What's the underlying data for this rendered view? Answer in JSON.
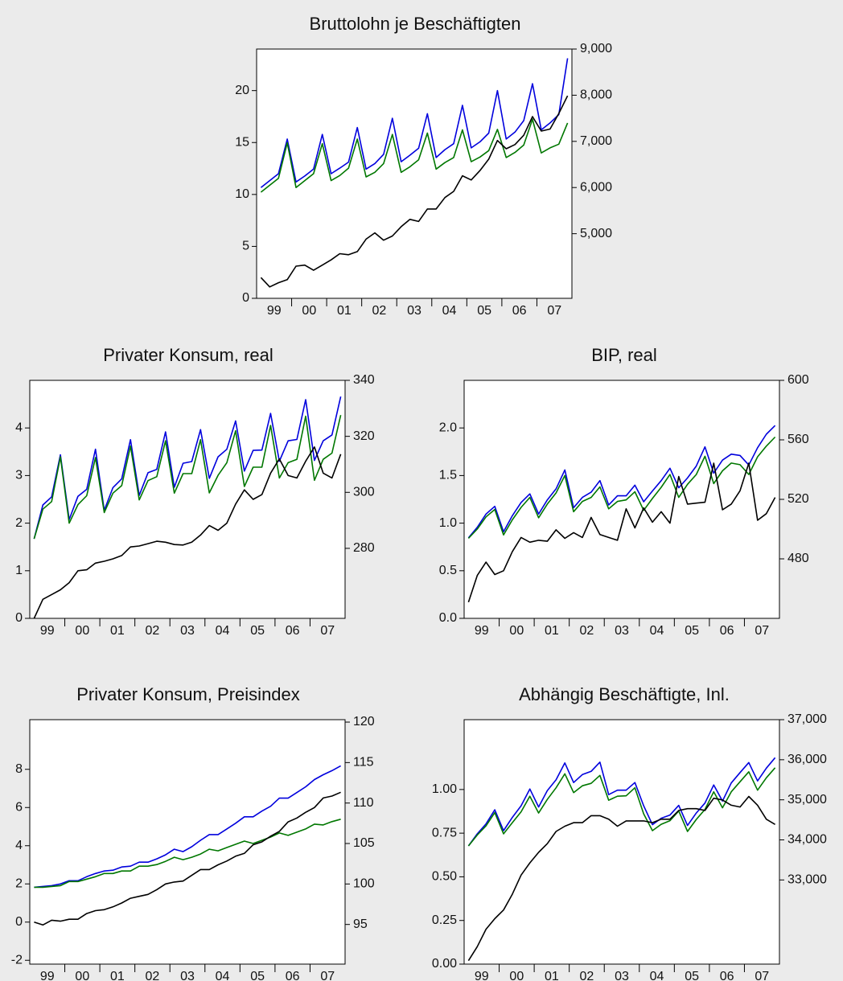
{
  "chart_data": [
    {
      "type": "line",
      "title": "Bruttolohn je Beschäftigten",
      "x_tick_labels": [
        "99",
        "00",
        "01",
        "02",
        "03",
        "04",
        "05",
        "06",
        "07"
      ],
      "left_axis": {
        "range": [
          0,
          24
        ],
        "ticks": [
          0,
          5,
          10,
          15,
          20
        ]
      },
      "right_axis": {
        "range": [
          3600,
          9000
        ],
        "ticks": [
          5000,
          6000,
          7000,
          8000,
          9000
        ],
        "tick_labels": [
          "5,000",
          "6,000",
          "7,000",
          "8,000",
          "9,000"
        ]
      },
      "grid": false,
      "series": [
        {
          "axis": "right",
          "color": "#0000dd",
          "values": [
            6000,
            6150,
            6300,
            7050,
            6120,
            6250,
            6400,
            7150,
            6300,
            6420,
            6550,
            7300,
            6400,
            6520,
            6720,
            7500,
            6560,
            6700,
            6850,
            7600,
            6650,
            6820,
            6950,
            7780,
            6860,
            6990,
            7180,
            8100,
            7050,
            7200,
            7450,
            8250,
            7250,
            7400,
            7580,
            8800
          ]
        },
        {
          "axis": "right",
          "color": "#007700",
          "values": [
            5900,
            6050,
            6200,
            6970,
            6000,
            6150,
            6300,
            6950,
            6150,
            6260,
            6420,
            7050,
            6230,
            6330,
            6520,
            7150,
            6330,
            6450,
            6600,
            7180,
            6400,
            6540,
            6650,
            7250,
            6560,
            6660,
            6800,
            7260,
            6650,
            6760,
            6920,
            7480,
            6750,
            6860,
            6940,
            7400
          ]
        },
        {
          "axis": "left",
          "color": "#000000",
          "values": [
            2.0,
            1.1,
            1.5,
            1.8,
            3.1,
            3.2,
            2.7,
            3.2,
            3.7,
            4.3,
            4.2,
            4.5,
            5.7,
            6.3,
            5.6,
            6.0,
            6.9,
            7.6,
            7.4,
            8.6,
            8.6,
            9.7,
            10.3,
            11.8,
            11.4,
            12.3,
            13.4,
            15.2,
            14.4,
            14.8,
            15.7,
            17.5,
            16.1,
            16.3,
            17.8,
            19.5
          ]
        }
      ]
    },
    {
      "type": "line",
      "title": "Privater Konsum, real",
      "x_tick_labels": [
        "99",
        "00",
        "01",
        "02",
        "03",
        "04",
        "05",
        "06",
        "07"
      ],
      "left_axis": {
        "range": [
          0,
          5
        ],
        "ticks": [
          0,
          1,
          2,
          3,
          4
        ]
      },
      "right_axis": {
        "range": [
          255,
          340
        ],
        "ticks": [
          280,
          300,
          320,
          340
        ]
      },
      "grid": false,
      "series": [
        {
          "axis": "right",
          "color": "#0000dd",
          "values": [
            283.4,
            295.5,
            298.4,
            313.4,
            290.3,
            298.6,
            301.1,
            315.4,
            293.6,
            301.7,
            304.8,
            318.8,
            298.9,
            307.0,
            308.2,
            321.6,
            301.8,
            310.4,
            311.0,
            322.4,
            305.0,
            312.7,
            315.4,
            325.5,
            307.6,
            315.0,
            315.1,
            328.2,
            311.1,
            318.4,
            318.9,
            333.1,
            311.4,
            318.4,
            320.5,
            334.2
          ]
        },
        {
          "axis": "right",
          "color": "#007700",
          "values": [
            283.4,
            294.0,
            296.7,
            312.7,
            289.0,
            295.6,
            298.8,
            312.4,
            292.8,
            299.7,
            302.4,
            316.5,
            297.3,
            304.2,
            305.6,
            318.4,
            299.7,
            306.7,
            306.7,
            318.8,
            299.8,
            306.1,
            310.6,
            322.0,
            302.1,
            309.0,
            309.0,
            323.9,
            305.1,
            310.6,
            311.8,
            327.2,
            304.3,
            311.8,
            314.0,
            327.6
          ]
        },
        {
          "axis": "left",
          "color": "#000000",
          "values": [
            0.0,
            0.4,
            0.5,
            0.6,
            0.75,
            1.0,
            1.02,
            1.16,
            1.2,
            1.25,
            1.32,
            1.5,
            1.52,
            1.57,
            1.62,
            1.6,
            1.55,
            1.54,
            1.6,
            1.75,
            1.95,
            1.85,
            2.0,
            2.4,
            2.7,
            2.5,
            2.6,
            3.05,
            3.35,
            3.0,
            2.95,
            3.3,
            3.6,
            3.05,
            2.95,
            3.45
          ]
        }
      ]
    },
    {
      "type": "line",
      "title": "BIP, real",
      "x_tick_labels": [
        "99",
        "00",
        "01",
        "02",
        "03",
        "04",
        "05",
        "06",
        "07"
      ],
      "left_axis": {
        "range": [
          0,
          2.5
        ],
        "ticks": [
          0.0,
          0.5,
          1.0,
          1.5,
          2.0
        ],
        "tick_labels": [
          "0.0",
          "0.5",
          "1.0",
          "1.5",
          "2.0"
        ]
      },
      "right_axis": {
        "range": [
          440,
          600
        ],
        "ticks": [
          480,
          520,
          560,
          600
        ]
      },
      "grid": false,
      "series": [
        {
          "axis": "right",
          "color": "#0000dd",
          "values": [
            494.1,
            501.2,
            510.1,
            515.3,
            498.2,
            509.0,
            517.9,
            523.7,
            510.1,
            519.6,
            527.1,
            539.8,
            514.4,
            521.3,
            524.8,
            532.6,
            516.2,
            522.4,
            522.4,
            529.5,
            518.4,
            525.6,
            532.6,
            540.9,
            527.8,
            534.4,
            542.4,
            555.3,
            537.6,
            546.4,
            550.4,
            549.5,
            543.1,
            554.7,
            563.8,
            569.6
          ]
        },
        {
          "axis": "right",
          "color": "#007700",
          "values": [
            493.8,
            500.0,
            508.2,
            513.2,
            496.1,
            506.2,
            514.6,
            521.3,
            507.6,
            516.8,
            524.3,
            536.0,
            511.7,
            518.6,
            521.3,
            528.4,
            513.6,
            518.6,
            519.6,
            525.1,
            512.6,
            520.6,
            528.1,
            536.7,
            521.3,
            530.1,
            536.7,
            549.0,
            530.6,
            539.2,
            544.4,
            543.3,
            536.7,
            548.6,
            555.8,
            561.9
          ]
        },
        {
          "axis": "left",
          "color": "#000000",
          "values": [
            0.17,
            0.45,
            0.59,
            0.46,
            0.5,
            0.7,
            0.85,
            0.8,
            0.82,
            0.81,
            0.93,
            0.84,
            0.9,
            0.85,
            1.06,
            0.88,
            0.85,
            0.82,
            1.15,
            0.95,
            1.16,
            1.01,
            1.12,
            1.0,
            1.49,
            1.2,
            1.21,
            1.22,
            1.63,
            1.14,
            1.2,
            1.34,
            1.63,
            1.03,
            1.1,
            1.27
          ]
        }
      ]
    },
    {
      "type": "line",
      "title": "Privater Konsum, Preisindex",
      "x_tick_labels": [
        "99",
        "00",
        "01",
        "02",
        "03",
        "04",
        "05",
        "06",
        "07"
      ],
      "left_axis": {
        "range": [
          -2.2,
          10.6
        ],
        "ticks": [
          -2,
          0,
          2,
          4,
          6,
          8
        ],
        "tick_labels": [
          "-2",
          "0",
          "2",
          "4",
          "6",
          "8"
        ]
      },
      "right_axis": {
        "range": [
          90.1,
          120.3
        ],
        "ticks": [
          95,
          100,
          105,
          110,
          115,
          120
        ]
      },
      "grid": false,
      "series": [
        {
          "axis": "right",
          "color": "#0000dd",
          "values": [
            99.6,
            99.7,
            99.8,
            100.0,
            100.4,
            100.4,
            100.9,
            101.3,
            101.6,
            101.7,
            102.1,
            102.2,
            102.7,
            102.7,
            103.1,
            103.6,
            104.3,
            104.0,
            104.6,
            105.4,
            106.1,
            106.1,
            106.8,
            107.5,
            108.3,
            108.3,
            109.0,
            109.6,
            110.6,
            110.6,
            111.3,
            112.0,
            112.9,
            113.5,
            114.0,
            114.6
          ]
        },
        {
          "axis": "right",
          "color": "#007700",
          "values": [
            99.6,
            99.6,
            99.7,
            99.8,
            100.3,
            100.3,
            100.6,
            100.9,
            101.3,
            101.3,
            101.6,
            101.6,
            102.2,
            102.2,
            102.4,
            102.8,
            103.3,
            103.0,
            103.3,
            103.7,
            104.3,
            104.1,
            104.5,
            104.9,
            105.3,
            105.0,
            105.4,
            105.8,
            106.3,
            106.0,
            106.4,
            106.8,
            107.4,
            107.3,
            107.7,
            108.0
          ]
        },
        {
          "axis": "left",
          "color": "#000000",
          "values": [
            0.0,
            -0.15,
            0.1,
            0.05,
            0.15,
            0.15,
            0.45,
            0.6,
            0.65,
            0.8,
            1.0,
            1.25,
            1.35,
            1.45,
            1.7,
            2.0,
            2.1,
            2.15,
            2.45,
            2.75,
            2.75,
            3.0,
            3.2,
            3.45,
            3.6,
            4.05,
            4.2,
            4.5,
            4.75,
            5.25,
            5.45,
            5.75,
            6.0,
            6.5,
            6.6,
            6.8
          ]
        }
      ]
    },
    {
      "type": "line",
      "title": "Abhängig Beschäftigte, Inl.",
      "x_tick_labels": [
        "99",
        "00",
        "01",
        "02",
        "03",
        "04",
        "05",
        "06",
        "07"
      ],
      "left_axis": {
        "range": [
          0,
          1.4
        ],
        "ticks": [
          0.0,
          0.25,
          0.5,
          0.75,
          1.0
        ],
        "tick_labels": [
          "0.00",
          "0.25",
          "0.50",
          "0.75",
          "1.00"
        ]
      },
      "right_axis": {
        "range": [
          30900,
          37000
        ],
        "ticks": [
          33000,
          34000,
          35000,
          36000,
          37000
        ],
        "tick_labels": [
          "33,000",
          "34,000",
          "35,000",
          "36,000",
          "37,000"
        ]
      },
      "grid": false,
      "series": [
        {
          "axis": "right",
          "color": "#0000dd",
          "values": [
            33850,
            34150,
            34400,
            34750,
            34230,
            34560,
            34850,
            35270,
            34820,
            35230,
            35500,
            35920,
            35430,
            35630,
            35710,
            35940,
            35130,
            35240,
            35240,
            35430,
            34850,
            34380,
            34540,
            34620,
            34860,
            34360,
            34670,
            34920,
            35370,
            34970,
            35420,
            35680,
            35930,
            35470,
            35790,
            36050
          ]
        },
        {
          "axis": "right",
          "color": "#007700",
          "values": [
            33850,
            34120,
            34350,
            34680,
            34150,
            34430,
            34700,
            35090,
            34670,
            35010,
            35300,
            35650,
            35180,
            35350,
            35410,
            35610,
            34990,
            35090,
            35100,
            35300,
            34650,
            34230,
            34390,
            34480,
            34720,
            34210,
            34510,
            34760,
            35200,
            34800,
            35200,
            35450,
            35700,
            35240,
            35550,
            35800
          ]
        },
        {
          "axis": "left",
          "color": "#000000",
          "values": [
            0.02,
            0.1,
            0.2,
            0.26,
            0.31,
            0.4,
            0.51,
            0.58,
            0.64,
            0.69,
            0.76,
            0.79,
            0.81,
            0.81,
            0.85,
            0.85,
            0.83,
            0.79,
            0.82,
            0.82,
            0.82,
            0.81,
            0.83,
            0.83,
            0.88,
            0.89,
            0.89,
            0.88,
            0.95,
            0.94,
            0.91,
            0.9,
            0.96,
            0.91,
            0.83,
            0.8
          ]
        }
      ]
    }
  ]
}
